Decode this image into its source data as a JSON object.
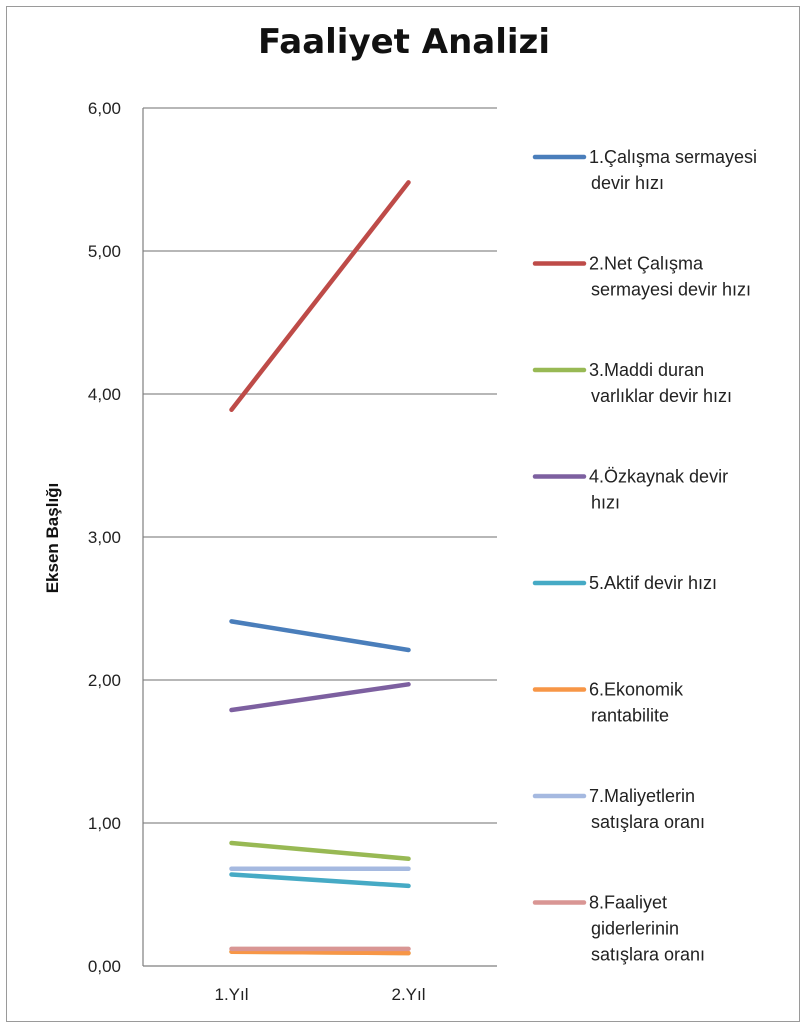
{
  "chart_data": {
    "type": "line",
    "title": "Faaliyet Analizi",
    "ylabel": "Eksen Başlığı",
    "xlabel": "",
    "categories": [
      "1.Yıl",
      "2.Yıl"
    ],
    "ylim": [
      0,
      6
    ],
    "yticks": [
      "0,00",
      "1,00",
      "2,00",
      "3,00",
      "4,00",
      "5,00",
      "6,00"
    ],
    "grid": true,
    "legend_position": "right",
    "series": [
      {
        "name": "1.Çalışma sermayesi devir hızı",
        "name_lines": [
          "1.Çalışma sermayesi",
          "devir hızı"
        ],
        "values": [
          2.41,
          2.21
        ],
        "color": "#4a7ebb"
      },
      {
        "name": "2.Net Çalışma sermayesi devir hızı",
        "name_lines": [
          "2.Net Çalışma",
          "sermayesi devir hızı"
        ],
        "values": [
          3.89,
          5.48
        ],
        "color": "#be4b48"
      },
      {
        "name": "3.Maddi duran varlıklar devir hızı",
        "name_lines": [
          "3.Maddi duran",
          "varlıklar devir hızı"
        ],
        "values": [
          0.86,
          0.75
        ],
        "color": "#98b954"
      },
      {
        "name": "4.Özkaynak devir hızı",
        "name_lines": [
          "4.Özkaynak devir",
          "hızı"
        ],
        "values": [
          1.79,
          1.97
        ],
        "color": "#7d60a0"
      },
      {
        "name": "5.Aktif devir hızı",
        "name_lines": [
          "5.Aktif devir hızı"
        ],
        "values": [
          0.64,
          0.56
        ],
        "color": "#46aac5"
      },
      {
        "name": "6.Ekonomik rantabilite",
        "name_lines": [
          "6.Ekonomik",
          "rantabilite"
        ],
        "values": [
          0.1,
          0.09
        ],
        "color": "#f79646"
      },
      {
        "name": "7.Maliyetlerin satışlara oranı",
        "name_lines": [
          "7.Maliyetlerin",
          "satışlara oranı"
        ],
        "values": [
          0.68,
          0.68
        ],
        "color": "#a5b9e0"
      },
      {
        "name": "8.Faaliyet giderlerinin satışlara oranı",
        "name_lines": [
          "8.Faaliyet",
          "giderlerinin",
          "satışlara oranı"
        ],
        "values": [
          0.12,
          0.12
        ],
        "color": "#d99694"
      }
    ],
    "extra_lines": [
      {
        "values": [
          0.1,
          0.09
        ],
        "color": "#c3d69b"
      }
    ]
  }
}
